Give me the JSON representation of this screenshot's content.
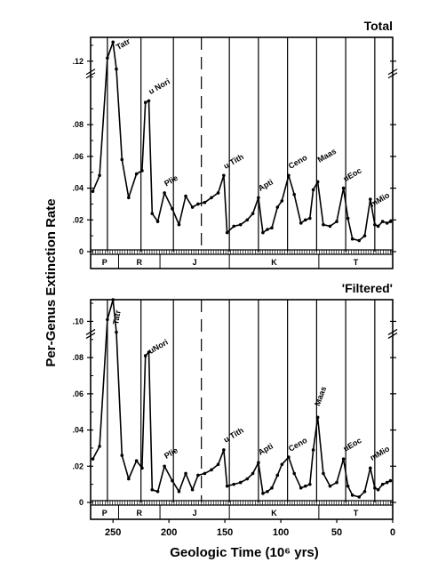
{
  "chart_data": [
    {
      "type": "line",
      "title": "Total",
      "ylim": [
        0,
        0.135
      ],
      "yticks": [
        0,
        0.02,
        0.04,
        0.06,
        0.08,
        0.12
      ],
      "ytick_labels": [
        "0",
        ".02",
        ".04",
        ".06",
        ".08",
        ".12"
      ],
      "xlim": [
        270,
        0
      ],
      "x": [
        268,
        262,
        255,
        250,
        247,
        242,
        236,
        229,
        224,
        221,
        218,
        215,
        210,
        204,
        197,
        191,
        185,
        179,
        174,
        168,
        162,
        156,
        151,
        148,
        142,
        136,
        130,
        125,
        120,
        116,
        112,
        108,
        103,
        99,
        93,
        88,
        82,
        78,
        74,
        71,
        67,
        62,
        56,
        50,
        44,
        40,
        36,
        30,
        25,
        20,
        16,
        13,
        9,
        5,
        2
      ],
      "values": [
        0.038,
        0.048,
        0.122,
        0.132,
        0.115,
        0.058,
        0.034,
        0.049,
        0.051,
        0.094,
        0.095,
        0.024,
        0.019,
        0.037,
        0.027,
        0.017,
        0.035,
        0.028,
        0.03,
        0.031,
        0.034,
        0.037,
        0.048,
        0.012,
        0.016,
        0.017,
        0.02,
        0.024,
        0.034,
        0.012,
        0.014,
        0.015,
        0.028,
        0.032,
        0.048,
        0.036,
        0.018,
        0.02,
        0.021,
        0.039,
        0.044,
        0.017,
        0.016,
        0.019,
        0.04,
        0.021,
        0.008,
        0.007,
        0.01,
        0.033,
        0.017,
        0.016,
        0.019,
        0.018,
        0.019
      ],
      "annotations": [
        {
          "text": "Tatr",
          "x": 247,
          "y": 0.127,
          "angle": -30
        },
        {
          "text": "u Nori",
          "x": 218,
          "y": 0.099,
          "angle": -30
        },
        {
          "text": "Plie",
          "x": 204,
          "y": 0.041,
          "angle": -30
        },
        {
          "text": "u Tith",
          "x": 151,
          "y": 0.052,
          "angle": -30
        },
        {
          "text": "Apti",
          "x": 120,
          "y": 0.038,
          "angle": -30
        },
        {
          "text": "Ceno",
          "x": 93,
          "y": 0.052,
          "angle": -30
        },
        {
          "text": "Maas",
          "x": 67,
          "y": 0.056,
          "angle": -30
        },
        {
          "text": "uEoc",
          "x": 44,
          "y": 0.044,
          "angle": -30
        },
        {
          "text": "mMio",
          "x": 20,
          "y": 0.028,
          "angle": -30
        }
      ]
    },
    {
      "type": "line",
      "title": "'Filtered'",
      "ylim": [
        0,
        0.112
      ],
      "yticks": [
        0,
        0.02,
        0.04,
        0.06,
        0.08,
        0.1
      ],
      "ytick_labels": [
        "0",
        ".02",
        ".04",
        ".06",
        ".08",
        ".10"
      ],
      "xlim": [
        270,
        0
      ],
      "x": [
        268,
        262,
        255,
        250,
        247,
        242,
        236,
        229,
        224,
        221,
        218,
        215,
        210,
        204,
        197,
        191,
        185,
        179,
        174,
        168,
        162,
        156,
        151,
        148,
        142,
        136,
        130,
        125,
        120,
        116,
        112,
        108,
        103,
        99,
        93,
        88,
        82,
        78,
        74,
        71,
        67,
        62,
        56,
        50,
        44,
        40,
        36,
        30,
        25,
        20,
        16,
        13,
        9,
        5,
        2
      ],
      "values": [
        0.024,
        0.031,
        0.101,
        0.112,
        0.094,
        0.026,
        0.013,
        0.023,
        0.019,
        0.081,
        0.083,
        0.007,
        0.006,
        0.02,
        0.012,
        0.006,
        0.016,
        0.007,
        0.015,
        0.016,
        0.018,
        0.021,
        0.029,
        0.009,
        0.01,
        0.011,
        0.013,
        0.016,
        0.022,
        0.005,
        0.006,
        0.008,
        0.015,
        0.021,
        0.025,
        0.016,
        0.008,
        0.009,
        0.01,
        0.029,
        0.047,
        0.016,
        0.009,
        0.011,
        0.024,
        0.009,
        0.004,
        0.003,
        0.006,
        0.019,
        0.008,
        0.007,
        0.01,
        0.011,
        0.012
      ],
      "annotations": [
        {
          "text": "Tatr",
          "x": 247,
          "y": 0.098,
          "angle": -80
        },
        {
          "text": "uNori",
          "x": 218,
          "y": 0.082,
          "angle": -30
        },
        {
          "text": "Plie",
          "x": 204,
          "y": 0.024,
          "angle": -30
        },
        {
          "text": "u Tith",
          "x": 151,
          "y": 0.033,
          "angle": -30
        },
        {
          "text": "Apti",
          "x": 120,
          "y": 0.026,
          "angle": -30
        },
        {
          "text": "Ceno",
          "x": 93,
          "y": 0.028,
          "angle": -30
        },
        {
          "text": "Maas",
          "x": 67,
          "y": 0.053,
          "angle": -70
        },
        {
          "text": "uEoc",
          "x": 44,
          "y": 0.028,
          "angle": -30
        },
        {
          "text": "mMio",
          "x": 20,
          "y": 0.023,
          "angle": -30
        }
      ]
    }
  ],
  "shared": {
    "ylabel": "Per-Genus Extinction Rate",
    "xlabel": "Geologic  Time  (10⁶ yrs)",
    "xticks": [
      250,
      200,
      150,
      100,
      50,
      0
    ],
    "xtick_labels": [
      "250",
      "200",
      "150",
      "100",
      "50",
      "0"
    ],
    "periodic_lines": [
      255,
      225,
      196,
      171,
      146,
      120,
      94,
      68,
      42,
      16
    ],
    "periods": [
      {
        "label": "P",
        "from": 270,
        "to": 245
      },
      {
        "label": "R",
        "from": 245,
        "to": 208
      },
      {
        "label": "J",
        "from": 208,
        "to": 146
      },
      {
        "label": "K",
        "from": 146,
        "to": 66
      },
      {
        "label": "T",
        "from": 66,
        "to": 0
      }
    ],
    "colors": {
      "ink": "#000000",
      "background": "#ffffff"
    }
  }
}
